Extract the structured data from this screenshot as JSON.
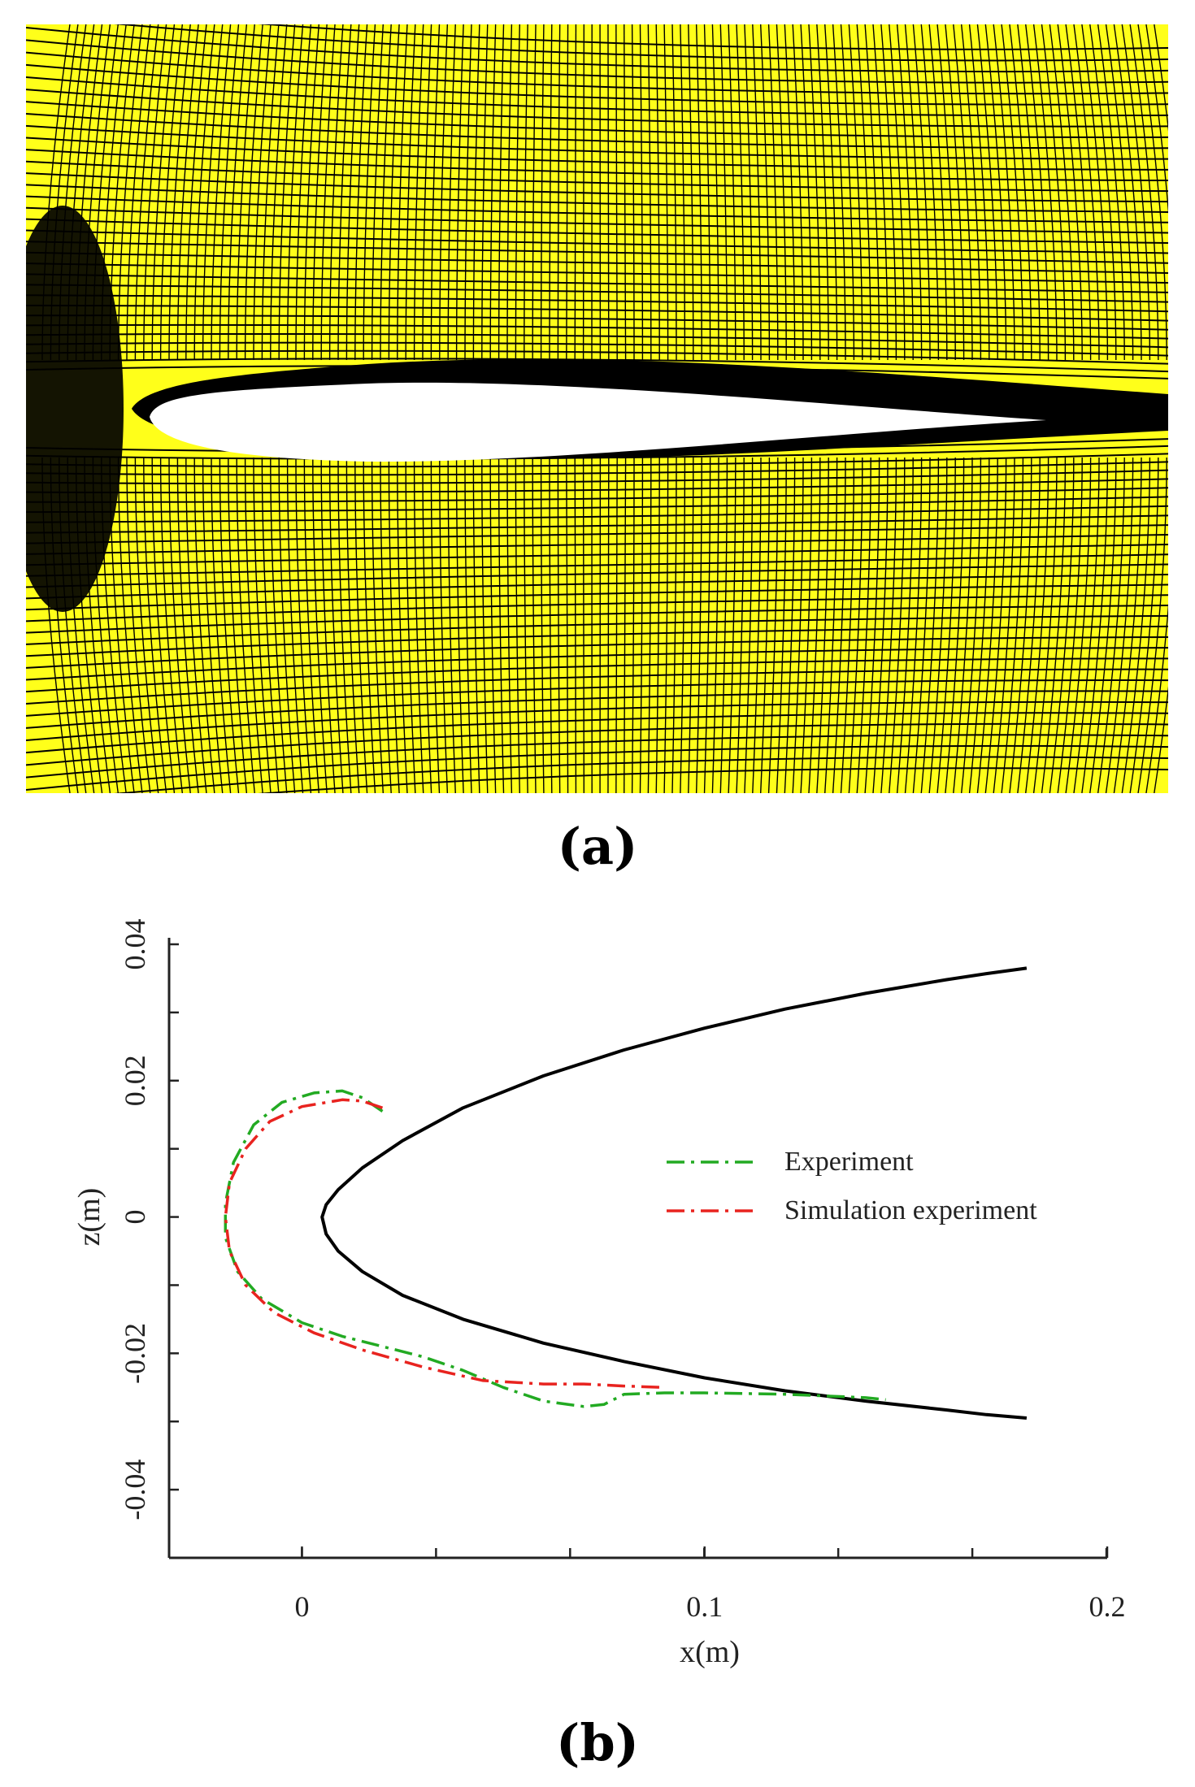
{
  "figure": {
    "panel_a_label": "(a)",
    "panel_b_label": "(b)",
    "panel_a_description_colors": {
      "mesh_fill": "#ffff1a",
      "mesh_line": "#000000",
      "body_fill": "#ffffff"
    }
  },
  "chart_data": {
    "type": "line",
    "title": "",
    "xlabel": "x(m)",
    "ylabel": "z(m)",
    "xlim": [
      -0.033,
      0.2
    ],
    "ylim": [
      -0.05,
      0.04
    ],
    "xticks": [
      0,
      0.1,
      0.2
    ],
    "xtick_labels": [
      "0",
      "0.1",
      "0.2"
    ],
    "yticks": [
      0.04,
      0.02,
      0,
      -0.02,
      -0.04
    ],
    "ytick_labels": [
      "0.04",
      "0.02",
      "0",
      "-0.02",
      "-0.04"
    ],
    "grid": false,
    "legend_position": "right",
    "series": [
      {
        "name": "Airfoil",
        "in_legend": false,
        "color": "#000000",
        "dash": "solid",
        "x": [
          0.18,
          0.17,
          0.16,
          0.15,
          0.14,
          0.12,
          0.1,
          0.08,
          0.06,
          0.04,
          0.025,
          0.015,
          0.009,
          0.006,
          0.005,
          0.006,
          0.009,
          0.015,
          0.025,
          0.04,
          0.06,
          0.08,
          0.1,
          0.12,
          0.14,
          0.16,
          0.17,
          0.18
        ],
        "y": [
          0.0365,
          0.0357,
          0.0348,
          0.0338,
          0.0328,
          0.0305,
          0.0277,
          0.0245,
          0.0207,
          0.016,
          0.0112,
          0.0072,
          0.004,
          0.0018,
          0.0,
          -0.0025,
          -0.005,
          -0.008,
          -0.0115,
          -0.015,
          -0.0185,
          -0.0212,
          -0.0236,
          -0.0255,
          -0.027,
          -0.0283,
          -0.029,
          -0.0295
        ]
      },
      {
        "name": "Experiment",
        "in_legend": true,
        "color": "#22aa22",
        "dash": "dashdot",
        "x": [
          0.02,
          0.015,
          0.01,
          0.003,
          -0.005,
          -0.012,
          -0.017,
          -0.019,
          -0.019,
          -0.016,
          -0.01,
          0.0,
          0.01,
          0.02,
          0.03,
          0.04,
          0.05,
          0.06,
          0.07,
          0.075,
          0.08,
          0.09,
          0.1,
          0.12,
          0.14,
          0.145
        ],
        "y": [
          0.0155,
          0.0175,
          0.0185,
          0.0182,
          0.0168,
          0.0135,
          0.008,
          0.002,
          -0.003,
          -0.008,
          -0.012,
          -0.0155,
          -0.0175,
          -0.019,
          -0.0205,
          -0.0225,
          -0.025,
          -0.027,
          -0.0278,
          -0.0275,
          -0.026,
          -0.0258,
          -0.0258,
          -0.026,
          -0.0265,
          -0.0268
        ]
      },
      {
        "name": "Simulation experiment",
        "in_legend": true,
        "color": "#e8231f",
        "dash": "dashdot",
        "x": [
          0.02,
          0.015,
          0.01,
          0.0,
          -0.008,
          -0.014,
          -0.018,
          -0.019,
          -0.018,
          -0.014,
          -0.007,
          0.003,
          0.015,
          0.03,
          0.045,
          0.06,
          0.07,
          0.08,
          0.09
        ],
        "y": [
          0.016,
          0.017,
          0.0172,
          0.0162,
          0.014,
          0.01,
          0.005,
          0.0,
          -0.005,
          -0.01,
          -0.014,
          -0.017,
          -0.0195,
          -0.022,
          -0.024,
          -0.0245,
          -0.0245,
          -0.0248,
          -0.025
        ]
      }
    ]
  }
}
